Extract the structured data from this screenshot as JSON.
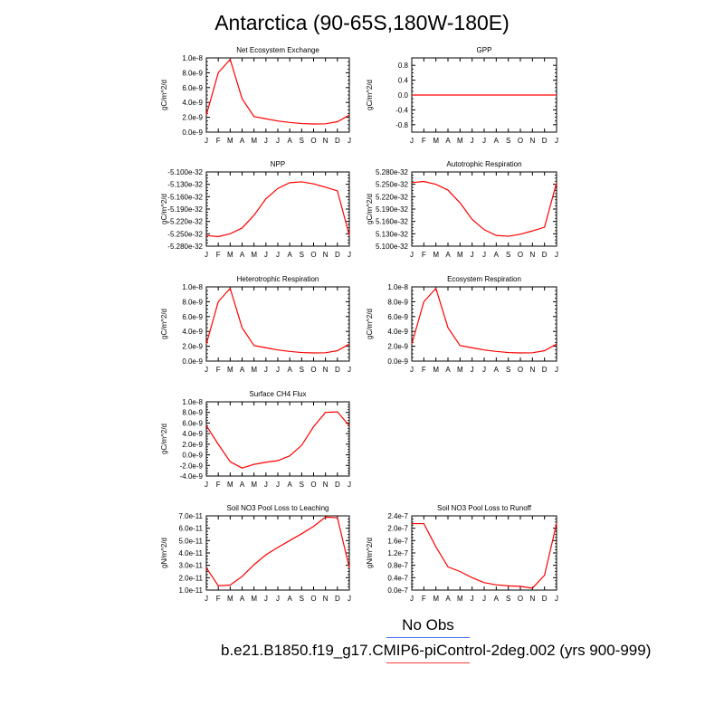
{
  "page": {
    "title": "Antarctica (90-65S,180W-180E)"
  },
  "legend": {
    "obs_label": "No Obs",
    "obs_color": "#4b6fff",
    "model_label": "b.e21.B1850.f19_g17.CMIP6-piControl-2deg.002 (yrs 900-999)",
    "model_color": "#ff3b3b"
  },
  "chart_data": [
    {
      "type": "line",
      "title": "Net Ecosystem Exchange",
      "ylabel": "gC/m^2/d",
      "x": [
        "J",
        "F",
        "M",
        "A",
        "M",
        "J",
        "J",
        "A",
        "S",
        "O",
        "N",
        "D",
        "J"
      ],
      "ylim": [
        0,
        1e-08
      ],
      "yticks": [
        0,
        2e-09,
        4e-09,
        6e-09,
        8e-09,
        1e-08
      ],
      "ytick_labels": [
        "0.0e-9",
        "2.0e-9",
        "4.0e-9",
        "6.0e-9",
        "8.0e-9",
        "1.0e-8"
      ],
      "series": [
        {
          "color": "#ff0000",
          "values": [
            2.3e-09,
            8e-09,
            9.8e-09,
            4.5e-09,
            2.1e-09,
            1.8e-09,
            1.5e-09,
            1.3e-09,
            1.15e-09,
            1.1e-09,
            1.12e-09,
            1.4e-09,
            2.3e-09
          ]
        }
      ]
    },
    {
      "type": "line",
      "title": "GPP",
      "ylabel": "gC/m^2/d",
      "x": [
        "J",
        "F",
        "M",
        "A",
        "M",
        "J",
        "J",
        "A",
        "S",
        "O",
        "N",
        "D",
        "J"
      ],
      "ylim": [
        -1.0,
        1.0
      ],
      "yticks": [
        -0.8,
        -0.4,
        0,
        0.4,
        0.8
      ],
      "ytick_labels": [
        "-0.8",
        "-0.4",
        "0.0",
        "0.4",
        "0.8"
      ],
      "series": [
        {
          "color": "#ff0000",
          "values": [
            0,
            0,
            0,
            0,
            0,
            0,
            0,
            0,
            0,
            0,
            0,
            0,
            0
          ]
        }
      ]
    },
    {
      "type": "line",
      "title": "NPP",
      "ylabel": "gC/m^2/d",
      "x": [
        "J",
        "F",
        "M",
        "A",
        "M",
        "J",
        "J",
        "A",
        "S",
        "O",
        "N",
        "D",
        "J"
      ],
      "ylim": [
        -5.28e-32,
        -5.1e-32
      ],
      "yticks": [
        -5.28e-32,
        -5.25e-32,
        -5.22e-32,
        -5.19e-32,
        -5.16e-32,
        -5.13e-32,
        -5.1e-32
      ],
      "ytick_labels": [
        "-5.280e-32",
        "-5.250e-32",
        "-5.220e-32",
        "-5.190e-32",
        "-5.160e-32",
        "-5.130e-32",
        "-5.100e-32"
      ],
      "series": [
        {
          "color": "#ff0000",
          "values": [
            -5.254e-32,
            -5.257e-32,
            -5.25e-32,
            -5.236e-32,
            -5.205e-32,
            -5.165e-32,
            -5.14e-32,
            -5.126e-32,
            -5.124e-32,
            -5.129e-32,
            -5.137e-32,
            -5.146e-32,
            -5.254e-32
          ]
        }
      ]
    },
    {
      "type": "line",
      "title": "Autotrophic Respiration",
      "ylabel": "gC/m^2/d",
      "x": [
        "J",
        "F",
        "M",
        "A",
        "M",
        "J",
        "J",
        "A",
        "S",
        "O",
        "N",
        "D",
        "J"
      ],
      "ylim": [
        5.1e-32,
        5.28e-32
      ],
      "yticks": [
        5.1e-32,
        5.13e-32,
        5.16e-32,
        5.19e-32,
        5.22e-32,
        5.25e-32,
        5.28e-32
      ],
      "ytick_labels": [
        "5.100e-32",
        "5.130e-32",
        "5.160e-32",
        "5.190e-32",
        "5.220e-32",
        "5.250e-32",
        "5.280e-32"
      ],
      "series": [
        {
          "color": "#ff0000",
          "values": [
            5.254e-32,
            5.257e-32,
            5.25e-32,
            5.236e-32,
            5.205e-32,
            5.165e-32,
            5.14e-32,
            5.126e-32,
            5.124e-32,
            5.129e-32,
            5.137e-32,
            5.146e-32,
            5.254e-32
          ]
        }
      ]
    },
    {
      "type": "line",
      "title": "Heterotrophic Respiration",
      "ylabel": "gC/m^2/d",
      "x": [
        "J",
        "F",
        "M",
        "A",
        "M",
        "J",
        "J",
        "A",
        "S",
        "O",
        "N",
        "D",
        "J"
      ],
      "ylim": [
        0,
        1e-08
      ],
      "yticks": [
        0,
        2e-09,
        4e-09,
        6e-09,
        8e-09,
        1e-08
      ],
      "ytick_labels": [
        "0.0e-9",
        "2.0e-9",
        "4.0e-9",
        "6.0e-9",
        "8.0e-9",
        "1.0e-8"
      ],
      "series": [
        {
          "color": "#ff0000",
          "values": [
            2.3e-09,
            8e-09,
            9.8e-09,
            4.5e-09,
            2.1e-09,
            1.8e-09,
            1.5e-09,
            1.3e-09,
            1.15e-09,
            1.1e-09,
            1.12e-09,
            1.4e-09,
            2.3e-09
          ]
        }
      ]
    },
    {
      "type": "line",
      "title": "Ecosystem Respiration",
      "ylabel": "gC/m^2/d",
      "x": [
        "J",
        "F",
        "M",
        "A",
        "M",
        "J",
        "J",
        "A",
        "S",
        "O",
        "N",
        "D",
        "J"
      ],
      "ylim": [
        0,
        1e-08
      ],
      "yticks": [
        0,
        2e-09,
        4e-09,
        6e-09,
        8e-09,
        1e-08
      ],
      "ytick_labels": [
        "0.0e-9",
        "2.0e-9",
        "4.0e-9",
        "6.0e-9",
        "8.0e-9",
        "1.0e-8"
      ],
      "series": [
        {
          "color": "#ff0000",
          "values": [
            2.3e-09,
            8e-09,
            9.8e-09,
            4.5e-09,
            2.1e-09,
            1.8e-09,
            1.5e-09,
            1.3e-09,
            1.15e-09,
            1.1e-09,
            1.12e-09,
            1.4e-09,
            2.3e-09
          ]
        }
      ]
    },
    {
      "type": "line",
      "title": "Surface CH4 Flux",
      "ylabel": "gC/m^2/d",
      "x": [
        "J",
        "F",
        "M",
        "A",
        "M",
        "J",
        "J",
        "A",
        "S",
        "O",
        "N",
        "D",
        "J"
      ],
      "ylim": [
        -4e-09,
        1e-08
      ],
      "yticks": [
        -4e-09,
        -2e-09,
        0,
        2e-09,
        4e-09,
        6e-09,
        8e-09,
        1e-08
      ],
      "ytick_labels": [
        "-4.0e-9",
        "-2.0e-9",
        "0.0e-9",
        "2.0e-9",
        "4.0e-9",
        "6.0e-9",
        "8.0e-9",
        "1.0e-8"
      ],
      "series": [
        {
          "color": "#ff0000",
          "values": [
            5.5e-09,
            2e-09,
            -1.3e-09,
            -2.5e-09,
            -1.8e-09,
            -1.4e-09,
            -1.1e-09,
            -2e-10,
            1.8e-09,
            5.3e-09,
            8e-09,
            8.1e-09,
            5.5e-09
          ]
        }
      ]
    },
    {
      "type": "line",
      "title": "Soil NO3 Pool Loss to Leaching",
      "ylabel": "gN/m^2/d",
      "x": [
        "J",
        "F",
        "M",
        "A",
        "M",
        "J",
        "J",
        "A",
        "S",
        "O",
        "N",
        "D",
        "J"
      ],
      "ylim": [
        1e-11,
        7e-11
      ],
      "yticks": [
        1e-11,
        2e-11,
        3e-11,
        4e-11,
        5e-11,
        6e-11,
        7e-11
      ],
      "ytick_labels": [
        "1.0e-11",
        "2.0e-11",
        "3.0e-11",
        "4.0e-11",
        "5.0e-11",
        "6.0e-11",
        "7.0e-11"
      ],
      "series": [
        {
          "color": "#ff0000",
          "values": [
            2.8e-11,
            1.35e-11,
            1.4e-11,
            2.1e-11,
            3.05e-11,
            3.85e-11,
            4.45e-11,
            5e-11,
            5.55e-11,
            6.15e-11,
            6.9e-11,
            6.85e-11,
            2.8e-11
          ]
        }
      ]
    },
    {
      "type": "line",
      "title": "Soil NO3 Pool Loss to Runoff",
      "ylabel": "gN/m^2/d",
      "x": [
        "J",
        "F",
        "M",
        "A",
        "M",
        "J",
        "J",
        "A",
        "S",
        "O",
        "N",
        "D",
        "J"
      ],
      "ylim": [
        0,
        2.4e-07
      ],
      "yticks": [
        0,
        4e-08,
        8e-08,
        1.2e-07,
        1.6e-07,
        2e-07,
        2.4e-07
      ],
      "ytick_labels": [
        "0.0e-7",
        "0.4e-7",
        "0.8e-7",
        "1.2e-7",
        "1.6e-7",
        "2.0e-7",
        "2.4e-7"
      ],
      "series": [
        {
          "color": "#ff0000",
          "values": [
            2.15e-07,
            2.15e-07,
            1.4e-07,
            7.5e-08,
            6e-08,
            4e-08,
            2.4e-08,
            1.7e-08,
            1.35e-08,
            1.2e-08,
            6e-09,
            4.8e-08,
            2.15e-07
          ]
        }
      ]
    }
  ]
}
